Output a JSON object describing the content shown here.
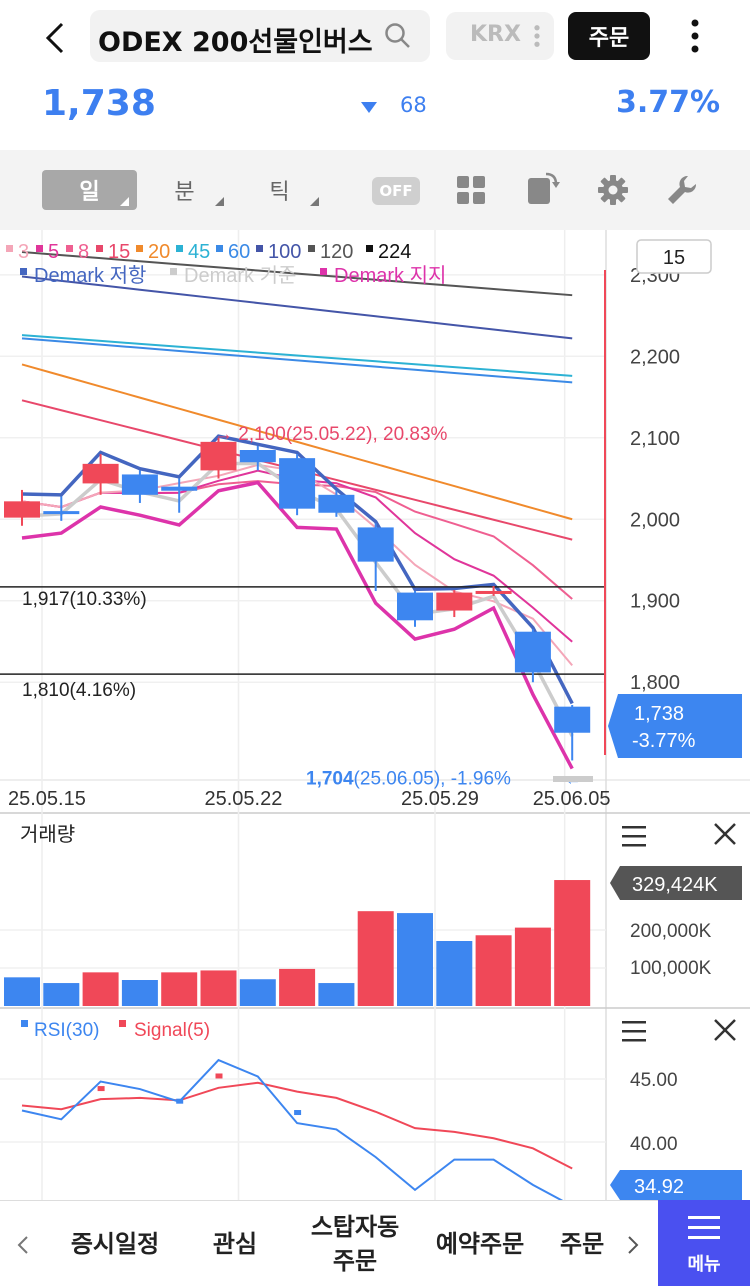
{
  "header": {
    "search_text": "ODEX 200선물인버스",
    "exchange": "KRX",
    "order_label": "주문"
  },
  "quote": {
    "price": "1,738",
    "change": "68",
    "change_pct": "3.77%",
    "direction": "down",
    "color": "#3d7ff0"
  },
  "toolbar": {
    "periods": [
      {
        "label": "일",
        "active": true
      },
      {
        "label": "분",
        "active": false
      },
      {
        "label": "틱",
        "active": false
      }
    ],
    "toggle_label": "OFF",
    "icons": [
      "grid-icon",
      "rotate-icon",
      "settings-gear-icon",
      "wrench-icon"
    ]
  },
  "chart_data": [
    {
      "type": "candlestick",
      "legend_ma": [
        {
          "name": "3",
          "color": "#f4a6b8"
        },
        {
          "name": "5",
          "color": "#e0359a"
        },
        {
          "name": "8",
          "color": "#ef5f91"
        },
        {
          "name": "15",
          "color": "#e8486b"
        },
        {
          "name": "20",
          "color": "#f08a2c"
        },
        {
          "name": "45",
          "color": "#2cb2d4"
        },
        {
          "name": "60",
          "color": "#3b8ae6"
        },
        {
          "name": "100",
          "color": "#4455a8"
        },
        {
          "name": "120",
          "color": "#555555"
        },
        {
          "name": "224",
          "color": "#111111"
        }
      ],
      "legend_demark": [
        {
          "name": "Demark 저항",
          "color": "#4466c0"
        },
        {
          "name": "Demark 기준",
          "color": "#cccccc"
        },
        {
          "name": "Demark 지지",
          "color": "#dd33aa"
        }
      ],
      "candles": [
        {
          "open": 2002,
          "close": 2022,
          "high": 2036,
          "low": 1992
        },
        {
          "open": 2010,
          "close": 2008,
          "high": 2028,
          "low": 1998
        },
        {
          "open": 2044,
          "close": 2068,
          "high": 2080,
          "low": 2030
        },
        {
          "open": 2055,
          "close": 2030,
          "high": 2060,
          "low": 2020
        },
        {
          "open": 2040,
          "close": 2035,
          "high": 2050,
          "low": 2008
        },
        {
          "open": 2060,
          "close": 2095,
          "high": 2100,
          "low": 2050
        },
        {
          "open": 2085,
          "close": 2070,
          "high": 2090,
          "low": 2060
        },
        {
          "open": 2075,
          "close": 2013,
          "high": 2080,
          "low": 2005
        },
        {
          "open": 2030,
          "close": 2008,
          "high": 2035,
          "low": 2003
        },
        {
          "open": 1990,
          "close": 1948,
          "high": 1995,
          "low": 1912
        },
        {
          "open": 1910,
          "close": 1876,
          "high": 1912,
          "low": 1868
        },
        {
          "open": 1888,
          "close": 1910,
          "high": 1913,
          "low": 1880
        },
        {
          "open": 1910,
          "close": 1912,
          "high": 1918,
          "low": 1906
        },
        {
          "open": 1862,
          "close": 1812,
          "high": 1865,
          "low": 1800
        },
        {
          "open": 1770,
          "close": 1738,
          "high": 1772,
          "low": 1704
        }
      ],
      "up_color": "#f04858",
      "down_color": "#3d86f0",
      "y_ticks": [
        "2,300",
        "2,200",
        "2,100",
        "2,000",
        "1,900",
        "1,800"
      ],
      "y_range": [
        1680,
        2355
      ],
      "x_ticks": [
        "25.05.15",
        "25.05.22",
        "25.05.29",
        "25.06.05"
      ],
      "annotations": {
        "high": "2,100(25.05.22), 20.83%",
        "low_value": "1,704",
        "low_rest": "(25.06.05), -1.96%",
        "level1": "1,917(10.33%)",
        "level1_value": 1917,
        "level2": "1,810(4.16%)",
        "level2_value": 1810
      },
      "price_tag": "1,738",
      "price_tag_pct": "-3.77%",
      "period_box": "15"
    },
    {
      "type": "bar",
      "title": "거래량",
      "values": [
        75000,
        60000,
        88000,
        68000,
        88000,
        93000,
        70000,
        97000,
        60000,
        248000,
        243000,
        170000,
        185000,
        205000,
        329424
      ],
      "colors": [
        "#3d86f0",
        "#3d86f0",
        "#f04858",
        "#3d86f0",
        "#f04858",
        "#f04858",
        "#3d86f0",
        "#f04858",
        "#3d86f0",
        "#f04858",
        "#3d86f0",
        "#3d86f0",
        "#f04858",
        "#f04858",
        "#f04858"
      ],
      "y_ticks": [
        "200,000K",
        "100,000K"
      ],
      "value_tag": "329,424K"
    },
    {
      "type": "line",
      "series": [
        {
          "name": "RSI(30)",
          "color": "#3d86f0",
          "values": [
            42.5,
            41.8,
            44.8,
            44.2,
            43.2,
            46.5,
            45.2,
            41.5,
            41.0,
            38.8,
            36.2,
            38.6,
            38.6,
            36.6,
            34.92
          ]
        },
        {
          "name": "Signal(5)",
          "color": "#f04858",
          "values": [
            42.9,
            42.6,
            43.4,
            43.5,
            43.3,
            44.3,
            44.7,
            44.0,
            43.5,
            42.4,
            41.1,
            40.8,
            40.3,
            39.5,
            37.9
          ]
        }
      ],
      "y_ticks": [
        "45.00",
        "40.00"
      ],
      "value_tag": "34.92"
    }
  ],
  "bottom_nav": {
    "items": [
      "증시일정",
      "관심",
      "스탑자동\n주문",
      "예약주문",
      "주문"
    ],
    "menu_label": "메뉴"
  }
}
